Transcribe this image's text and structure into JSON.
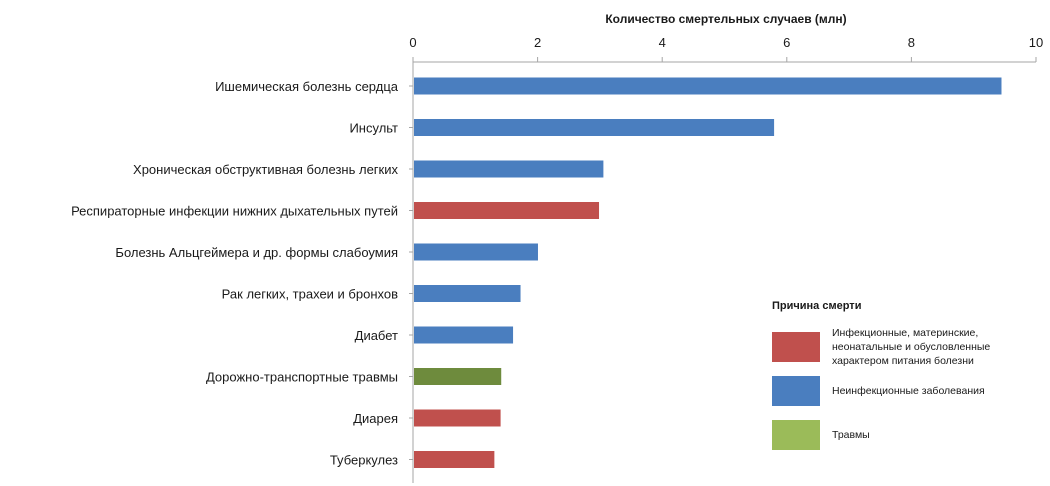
{
  "chart_data": {
    "type": "bar",
    "orientation": "horizontal",
    "title": "",
    "xlabel": "Количество смертельных случаев (млн)",
    "ylabel": "",
    "xlim": [
      0,
      10
    ],
    "xticks": [
      0,
      2,
      4,
      6,
      8,
      10
    ],
    "x_axis_position": "top",
    "grid": false,
    "categories": [
      "Ишемическая болезнь сердца",
      "Инсульт",
      "Хроническая обструктивная болезнь легких",
      "Респираторные инфекции нижних дыхательных путей",
      "Болезнь Альцгеймера и др. формы слабоумия",
      "Рак легких, трахеи и бронхов",
      "Диабет",
      "Дорожно-транспортные травмы",
      "Диарея",
      "Туберкулез"
    ],
    "values": [
      9.43,
      5.78,
      3.04,
      2.97,
      1.99,
      1.71,
      1.59,
      1.4,
      1.39,
      1.29
    ],
    "bar_colors": [
      "#4a7ebf",
      "#4a7ebf",
      "#4a7ebf",
      "#c0504d",
      "#4a7ebf",
      "#4a7ebf",
      "#4a7ebf",
      "#6e8b3d",
      "#c0504d",
      "#c0504d"
    ],
    "legend": {
      "title": "Причина смерти",
      "placement": "bottom-right",
      "items": [
        {
          "label": "Инфекционные, материнские, неонатальные и обусловленные характером питания болезни",
          "color": "#c0504d"
        },
        {
          "label": "Неинфекционные заболевания",
          "color": "#4a7ebf"
        },
        {
          "label": "Травмы",
          "color": "#9bbb59"
        }
      ]
    }
  }
}
